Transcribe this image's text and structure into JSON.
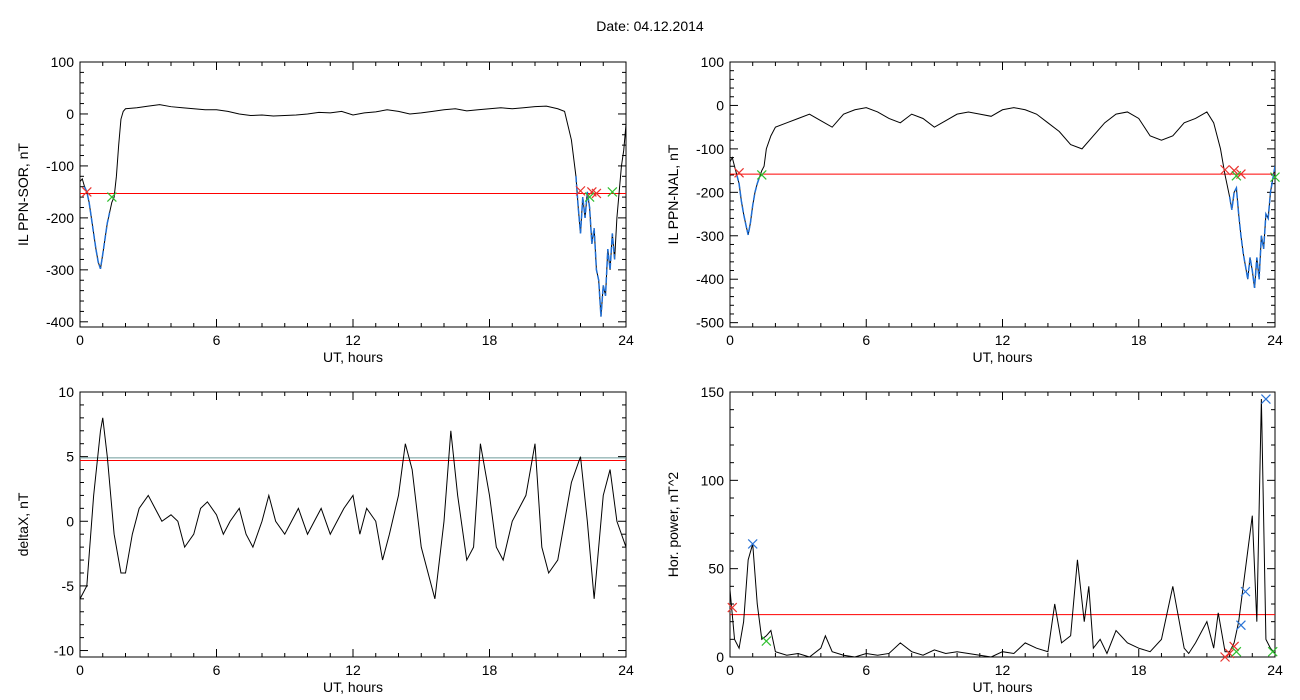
{
  "title": "Date:  04.12.2014",
  "chart_data": [
    {
      "type": "line",
      "ylabel": "IL PPN-SOR, nT",
      "xlabel": "UT, hours",
      "xlim": [
        0,
        24
      ],
      "ylim": [
        -410,
        100
      ],
      "xticks": [
        0,
        6,
        12,
        18,
        24
      ],
      "yticks": [
        100,
        0,
        -100,
        -200,
        -300,
        -400
      ],
      "series": [
        {
          "values_x": [
            0,
            0.1,
            0.2,
            0.3,
            0.4,
            0.5,
            0.6,
            0.7,
            0.8,
            0.9,
            1.0,
            1.1,
            1.2,
            1.3,
            1.4,
            1.5,
            1.6,
            1.7,
            1.8,
            1.9,
            2.0,
            2.5,
            3,
            3.5,
            4,
            4.5,
            5,
            5.5,
            6,
            6.5,
            7,
            7.5,
            8,
            8.5,
            9,
            9.5,
            10,
            10.5,
            11,
            11.5,
            12,
            12.5,
            13,
            13.5,
            14,
            14.5,
            15,
            15.5,
            16,
            16.5,
            17,
            17.5,
            18,
            18.5,
            19,
            19.5,
            20,
            20.5,
            21,
            21.3,
            21.6,
            21.8,
            21.9,
            22.0,
            22.1,
            22.2,
            22.3,
            22.4,
            22.5,
            22.6,
            22.7,
            22.8,
            22.9,
            23.0,
            23.1,
            23.2,
            23.3,
            23.4,
            23.5,
            23.6,
            23.7,
            23.8,
            23.9,
            24.0
          ],
          "values_y": [
            -130,
            -125,
            -140,
            -150,
            -170,
            -200,
            -230,
            -260,
            -285,
            -298,
            -270,
            -240,
            -210,
            -190,
            -170,
            -160,
            -120,
            -60,
            -10,
            5,
            10,
            12,
            15,
            18,
            14,
            12,
            10,
            8,
            8,
            5,
            0,
            -3,
            -2,
            -4,
            -3,
            -2,
            0,
            3,
            2,
            5,
            -2,
            2,
            4,
            8,
            5,
            0,
            2,
            5,
            8,
            10,
            6,
            8,
            10,
            12,
            10,
            12,
            14,
            15,
            10,
            5,
            -50,
            -120,
            -180,
            -230,
            -160,
            -200,
            -150,
            -180,
            -250,
            -220,
            -300,
            -320,
            -390,
            -330,
            -350,
            -260,
            -300,
            -230,
            -280,
            -200,
            -150,
            -100,
            -70,
            -20
          ]
        }
      ],
      "threshold": {
        "value": -153,
        "color": "#ff0000"
      },
      "markers_red": [
        [
          0.3,
          -150
        ],
        [
          22.0,
          -148
        ],
        [
          22.5,
          -150
        ],
        [
          22.7,
          -153
        ]
      ],
      "markers_green": [
        [
          1.4,
          -160
        ],
        [
          22.4,
          -160
        ],
        [
          23.4,
          -150
        ]
      ],
      "blue_segments": [
        [
          0.2,
          1.3
        ],
        [
          21.8,
          23.5
        ]
      ]
    },
    {
      "type": "line",
      "ylabel": "IL PPN-NAL, nT",
      "xlabel": "UT, hours",
      "xlim": [
        0,
        24
      ],
      "ylim": [
        -510,
        100
      ],
      "xticks": [
        0,
        6,
        12,
        18,
        24
      ],
      "yticks": [
        100,
        0,
        -100,
        -200,
        -300,
        -400,
        -500
      ],
      "series": [
        {
          "values_x": [
            0,
            0.1,
            0.2,
            0.3,
            0.4,
            0.5,
            0.6,
            0.7,
            0.8,
            0.9,
            1.0,
            1.1,
            1.2,
            1.3,
            1.4,
            1.5,
            1.6,
            1.8,
            2.0,
            2.5,
            3,
            3.5,
            4,
            4.5,
            5,
            5.5,
            6,
            6.5,
            7,
            7.5,
            8,
            8.5,
            9,
            9.5,
            10,
            10.5,
            11,
            11.5,
            12,
            12.5,
            13,
            13.5,
            14,
            14.5,
            15,
            15.5,
            16,
            16.5,
            17,
            17.5,
            18,
            18.5,
            19,
            19.5,
            20,
            20.5,
            21,
            21.3,
            21.6,
            21.8,
            22.0,
            22.1,
            22.2,
            22.3,
            22.4,
            22.5,
            22.6,
            22.7,
            22.8,
            22.9,
            23.0,
            23.1,
            23.2,
            23.3,
            23.4,
            23.5,
            23.6,
            23.7,
            23.8,
            23.9,
            24.0
          ],
          "values_y": [
            -130,
            -120,
            -140,
            -160,
            -180,
            -220,
            -250,
            -275,
            -298,
            -270,
            -230,
            -200,
            -180,
            -165,
            -150,
            -140,
            -100,
            -70,
            -50,
            -40,
            -30,
            -20,
            -35,
            -50,
            -20,
            -10,
            -5,
            -15,
            -30,
            -40,
            -20,
            -30,
            -50,
            -35,
            -20,
            -15,
            -20,
            -25,
            -10,
            -5,
            -10,
            -20,
            -40,
            -60,
            -90,
            -100,
            -70,
            -40,
            -20,
            -15,
            -30,
            -70,
            -80,
            -70,
            -40,
            -30,
            -15,
            -40,
            -100,
            -160,
            -210,
            -240,
            -200,
            -190,
            -250,
            -300,
            -340,
            -370,
            -400,
            -350,
            -380,
            -420,
            -350,
            -400,
            -300,
            -330,
            -250,
            -260,
            -200,
            -170,
            -140
          ]
        }
      ],
      "threshold": {
        "value": -158,
        "color": "#ff0000"
      },
      "markers_red": [
        [
          0.4,
          -155
        ],
        [
          21.8,
          -148
        ],
        [
          22.2,
          -150
        ],
        [
          22.5,
          -158
        ]
      ],
      "markers_green": [
        [
          1.4,
          -160
        ],
        [
          22.3,
          -162
        ],
        [
          24.0,
          -165
        ]
      ],
      "blue_segments": [
        [
          0.3,
          1.3
        ],
        [
          22.0,
          24.0
        ]
      ]
    },
    {
      "type": "line",
      "ylabel": "deltaX, nT",
      "xlabel": "UT, hours",
      "xlim": [
        0,
        24
      ],
      "ylim": [
        -10.5,
        10
      ],
      "xticks": [
        0,
        6,
        12,
        18,
        24
      ],
      "yticks": [
        10,
        5,
        0,
        -5,
        -10
      ],
      "series": [
        {
          "values_x": [
            0,
            0.3,
            0.6,
            0.9,
            1.0,
            1.2,
            1.5,
            1.8,
            2.0,
            2.3,
            2.6,
            3.0,
            3.3,
            3.6,
            4.0,
            4.3,
            4.6,
            5.0,
            5.3,
            5.6,
            6.0,
            6.3,
            6.6,
            7.0,
            7.3,
            7.6,
            8.0,
            8.3,
            8.6,
            9.0,
            9.3,
            9.6,
            10.0,
            10.3,
            10.6,
            11.0,
            11.3,
            11.6,
            12.0,
            12.3,
            12.6,
            13.0,
            13.3,
            13.6,
            14.0,
            14.3,
            14.6,
            15.0,
            15.3,
            15.6,
            16.0,
            16.3,
            16.6,
            17.0,
            17.3,
            17.6,
            18.0,
            18.3,
            18.6,
            19.0,
            19.3,
            19.6,
            20.0,
            20.3,
            20.6,
            21.0,
            21.3,
            21.6,
            22.0,
            22.3,
            22.6,
            23.0,
            23.3,
            23.6,
            24.0
          ],
          "values_y": [
            -6,
            -5,
            2,
            7,
            8,
            5,
            -1,
            -4,
            -4,
            -1,
            1,
            2,
            1,
            0,
            0.5,
            0,
            -2,
            -1,
            1,
            1.5,
            0.5,
            -1,
            0,
            1,
            -1,
            -2,
            0,
            2,
            0,
            -1,
            0,
            1,
            -1,
            0,
            1,
            -1,
            0,
            1,
            2,
            -1,
            1,
            0,
            -3,
            -1,
            2,
            6,
            4,
            -2,
            -4,
            -6,
            0,
            7,
            2,
            -3,
            -2,
            6,
            2,
            -2,
            -3,
            0,
            1,
            2,
            6,
            -2,
            -4,
            -3,
            0,
            3,
            5,
            0,
            -6,
            2,
            4,
            0,
            -2
          ]
        }
      ],
      "threshold_lines": [
        {
          "value": 4.9,
          "color": "#6e9b9b"
        },
        {
          "value": 4.7,
          "color": "#ff0000"
        }
      ]
    },
    {
      "type": "line",
      "ylabel": "Hor. power, nT^2",
      "xlabel": "UT, hours",
      "xlim": [
        0,
        24
      ],
      "ylim": [
        0,
        150
      ],
      "xticks": [
        0,
        6,
        12,
        18,
        24
      ],
      "yticks": [
        150,
        100,
        50,
        0
      ],
      "series": [
        {
          "values_x": [
            0,
            0.2,
            0.4,
            0.6,
            0.8,
            1.0,
            1.2,
            1.4,
            1.6,
            1.8,
            2.0,
            2.5,
            3,
            3.5,
            4,
            4.2,
            4.5,
            5,
            5.5,
            6,
            6.5,
            7,
            7.5,
            8,
            8.5,
            9,
            9.5,
            10,
            10.5,
            11,
            11.5,
            12,
            12.5,
            13,
            13.5,
            14,
            14.3,
            14.6,
            15,
            15.3,
            15.6,
            15.8,
            16,
            16.3,
            16.6,
            17,
            17.5,
            18,
            18.5,
            19,
            19.5,
            20,
            20.2,
            20.5,
            21,
            21.3,
            21.5,
            21.8,
            22,
            22.2,
            22.4,
            22.6,
            22.8,
            23.0,
            23.2,
            23.4,
            23.6,
            23.8,
            24.0
          ],
          "values_y": [
            38,
            10,
            5,
            20,
            55,
            64,
            30,
            10,
            12,
            15,
            3,
            1,
            2,
            0,
            5,
            12,
            3,
            1,
            0,
            2,
            1,
            2,
            8,
            3,
            1,
            4,
            2,
            3,
            2,
            1,
            0,
            3,
            2,
            8,
            5,
            3,
            30,
            8,
            12,
            55,
            20,
            40,
            5,
            10,
            2,
            15,
            8,
            5,
            3,
            10,
            40,
            5,
            2,
            8,
            20,
            5,
            25,
            3,
            3,
            8,
            20,
            40,
            60,
            80,
            20,
            146,
            10,
            5,
            2
          ]
        }
      ],
      "threshold": {
        "value": 24,
        "color": "#ff0000"
      },
      "markers_blue": [
        [
          1.0,
          64
        ],
        [
          22.5,
          18
        ],
        [
          22.7,
          37
        ],
        [
          23.6,
          146
        ]
      ],
      "markers_red": [
        [
          0.1,
          28
        ],
        [
          21.8,
          0
        ],
        [
          22.0,
          2
        ],
        [
          22.2,
          6
        ]
      ],
      "markers_green": [
        [
          1.6,
          9
        ],
        [
          22.3,
          3
        ],
        [
          23.9,
          3
        ]
      ]
    }
  ]
}
